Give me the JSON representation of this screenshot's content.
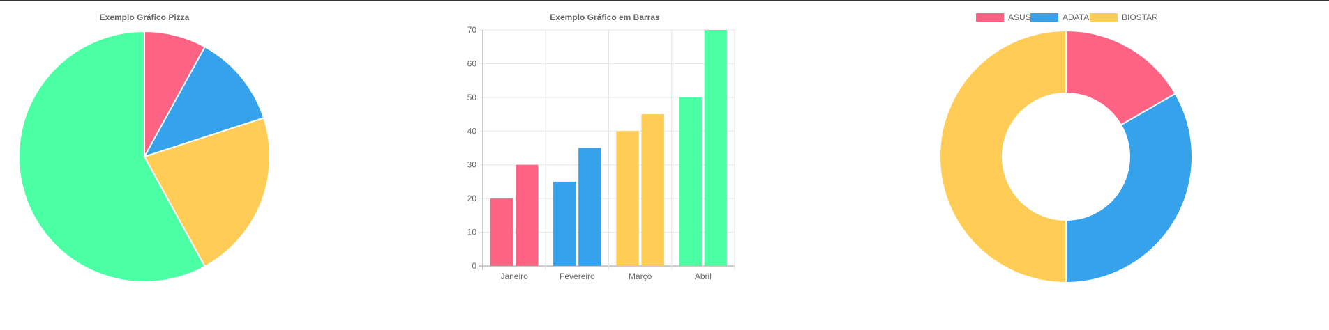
{
  "colors": {
    "pink": "#ff6384",
    "blue": "#36a2eb",
    "yellow": "#ffcd56",
    "green": "#4bffa5"
  },
  "chart_data": [
    {
      "type": "pie",
      "title": "Exemplo Gráfico Pizza",
      "values": [
        8,
        12,
        22,
        58
      ],
      "colors": [
        "#ff6384",
        "#36a2eb",
        "#ffcd56",
        "#4bffa5"
      ]
    },
    {
      "type": "bar",
      "title": "Exemplo Gráfico em Barras",
      "categories": [
        "Janeiro",
        "Fevereiro",
        "Março",
        "Abril"
      ],
      "series": [
        {
          "values": [
            20,
            25,
            40,
            50
          ]
        },
        {
          "values": [
            30,
            35,
            45,
            70
          ]
        }
      ],
      "category_colors": [
        "#ff6384",
        "#36a2eb",
        "#ffcd56",
        "#4bffa5"
      ],
      "ylim": [
        0,
        70
      ],
      "yticks": [
        0,
        10,
        20,
        30,
        40,
        50,
        60,
        70
      ],
      "grid": true
    },
    {
      "type": "doughnut",
      "legend": "top",
      "labels": [
        "ASUS",
        "ADATA",
        "BIOSTAR"
      ],
      "values": [
        50,
        100,
        150
      ],
      "colors": [
        "#ff6384",
        "#36a2eb",
        "#ffcd56"
      ]
    }
  ]
}
